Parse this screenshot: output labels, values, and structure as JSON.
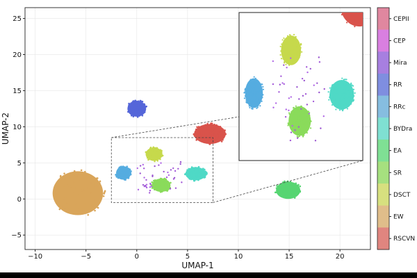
{
  "chart_data": {
    "type": "scatter",
    "title": "",
    "xlabel": "UMAP-1",
    "ylabel": "UMAP-2",
    "xlim": [
      -11,
      23
    ],
    "ylim": [
      -7,
      26.5
    ],
    "xticks": [
      "−10",
      "−5",
      "0",
      "5",
      "10",
      "15",
      "20"
    ],
    "xtick_values": [
      -10,
      -5,
      0,
      5,
      10,
      15,
      20
    ],
    "yticks": [
      "−5",
      "0",
      "5",
      "10",
      "15",
      "20",
      "25"
    ],
    "ytick_values": [
      -5,
      0,
      5,
      10,
      15,
      20,
      25
    ],
    "grid": true,
    "legend": "colorbar-right",
    "classes": [
      {
        "name": "CEPII",
        "color": "#e0879f"
      },
      {
        "name": "CEP",
        "color": "#d97fe0"
      },
      {
        "name": "Mira",
        "color": "#a77fe0"
      },
      {
        "name": "RR",
        "color": "#7f8ee0"
      },
      {
        "name": "RRc",
        "color": "#86bde0"
      },
      {
        "name": "BYDra",
        "color": "#7fe0d2"
      },
      {
        "name": "EA",
        "color": "#7fe094"
      },
      {
        "name": "SR",
        "color": "#a6e07f"
      },
      {
        "name": "DSCT",
        "color": "#d7e07f"
      },
      {
        "name": "EW",
        "color": "#e0bd8a"
      },
      {
        "name": "RSCVN",
        "color": "#e0857f"
      }
    ],
    "clusters": [
      {
        "class": "EW",
        "center": [
          -5.8,
          0.8
        ],
        "spread": [
          2.7,
          3.3
        ],
        "color": "#d9a55a"
      },
      {
        "class": "RR",
        "center": [
          0.0,
          12.5
        ],
        "spread": [
          1.0,
          1.2
        ],
        "color": "#5566d9"
      },
      {
        "class": "RSCVN",
        "center": [
          7.2,
          9.0
        ],
        "spread": [
          1.7,
          1.5
        ],
        "color": "#d9534b"
      },
      {
        "class": "EA",
        "center": [
          14.9,
          1.2
        ],
        "spread": [
          1.3,
          1.3
        ],
        "color": "#57d572"
      },
      {
        "class": "DSCT",
        "center": [
          1.7,
          6.2
        ],
        "spread": [
          0.9,
          1.0
        ],
        "color": "#c6d94c"
      },
      {
        "class": "RRc",
        "center": [
          -1.3,
          3.6
        ],
        "spread": [
          0.8,
          1.0
        ],
        "color": "#55ace0"
      },
      {
        "class": "SR",
        "center": [
          2.4,
          1.9
        ],
        "spread": [
          1.0,
          1.0
        ],
        "color": "#8adb5b"
      },
      {
        "class": "BYDra",
        "center": [
          5.8,
          3.5
        ],
        "spread": [
          1.1,
          1.0
        ],
        "color": "#4fd9c6"
      }
    ],
    "inset": {
      "source_xlim": [
        -2.5,
        7.5
      ],
      "source_ylim": [
        -0.5,
        8.5
      ]
    }
  }
}
